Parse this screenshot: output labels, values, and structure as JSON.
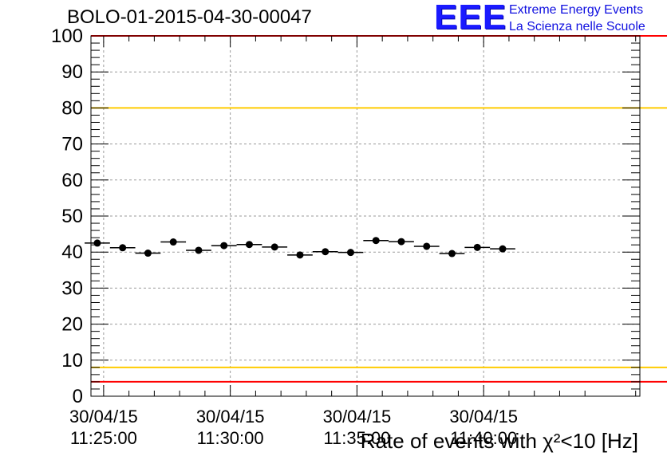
{
  "logo": {
    "mark": "EEE",
    "line1": "Extreme Energy Events",
    "line2": "La Scienza nelle Scuole"
  },
  "chart_data": {
    "type": "scatter",
    "title": "BOLO-01-2015-04-30-00047",
    "xlabel": "Rate of events with χ²<10 [Hz]",
    "ylabel": "",
    "x_axis_type": "time",
    "xlim": [
      "11:24:30",
      "11:46:10"
    ],
    "ylim": [
      0,
      100
    ],
    "y_ticks": [
      0,
      10,
      20,
      30,
      40,
      50,
      60,
      70,
      80,
      90,
      100
    ],
    "x_ticks": [
      {
        "time": "11:25:00",
        "date_label": "30/04/15",
        "time_label": "11:25:00"
      },
      {
        "time": "11:30:00",
        "date_label": "30/04/15",
        "time_label": "11:30:00"
      },
      {
        "time": "11:35:00",
        "date_label": "30/04/15",
        "time_label": "11:35:00"
      },
      {
        "time": "11:40:00",
        "date_label": "30/04/15",
        "time_label": "11:40:00"
      }
    ],
    "grid": true,
    "bin_width_minutes": 1,
    "series": [
      {
        "points": [
          {
            "x": "11:24:45",
            "y": 42.5
          },
          {
            "x": "11:25:45",
            "y": 41.2
          },
          {
            "x": "11:26:45",
            "y": 39.7
          },
          {
            "x": "11:27:45",
            "y": 42.8
          },
          {
            "x": "11:28:45",
            "y": 40.5
          },
          {
            "x": "11:29:45",
            "y": 41.8
          },
          {
            "x": "11:30:45",
            "y": 42.1
          },
          {
            "x": "11:31:45",
            "y": 41.4
          },
          {
            "x": "11:32:45",
            "y": 39.2
          },
          {
            "x": "11:33:45",
            "y": 40.1
          },
          {
            "x": "11:34:45",
            "y": 39.9
          },
          {
            "x": "11:35:45",
            "y": 43.2
          },
          {
            "x": "11:36:45",
            "y": 42.9
          },
          {
            "x": "11:37:45",
            "y": 41.6
          },
          {
            "x": "11:38:45",
            "y": 39.6
          },
          {
            "x": "11:39:45",
            "y": 41.3
          },
          {
            "x": "11:40:45",
            "y": 40.9
          }
        ]
      }
    ],
    "reference_lines": [
      {
        "y": 100,
        "color": "#ff0000"
      },
      {
        "y": 80,
        "color": "#ffcc00"
      },
      {
        "y": 8,
        "color": "#ffcc00"
      },
      {
        "y": 4,
        "color": "#ff0000"
      }
    ]
  }
}
